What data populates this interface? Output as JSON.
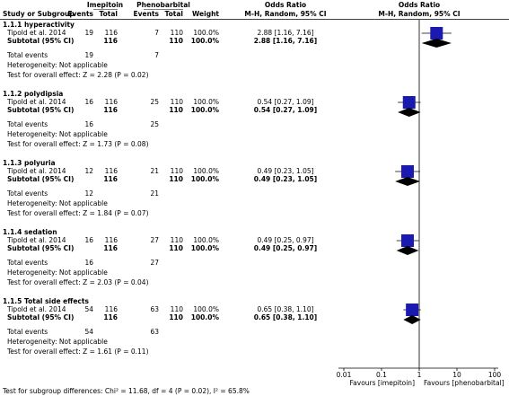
{
  "chart_data": {
    "type": "forest",
    "headers": {
      "study": "Study or Subgroup",
      "group1": "Imepitoin",
      "group2": "Phenobarbital",
      "events": "Events",
      "total": "Total",
      "weight": "Weight",
      "effect": "Odds Ratio",
      "method": "M-H, Random, 95% CI"
    },
    "total_events_label": "Total events",
    "groups": [
      {
        "title": "1.1.1 hyperactivity",
        "study": {
          "name": "Tipold et al. 2014",
          "events1": 19,
          "total1": 116,
          "events2": 7,
          "total2": 110,
          "weight": "100.0%",
          "or": 2.88,
          "ci": [
            1.16,
            7.16
          ],
          "label": "2.88 [1.16, 7.16]"
        },
        "subtotal": {
          "name": "Subtotal (95% CI)",
          "total1": 116,
          "total2": 110,
          "weight": "100.0%",
          "or": 2.88,
          "ci": [
            1.16,
            7.16
          ],
          "label": "2.88 [1.16, 7.16]"
        },
        "total_events": [
          19,
          7
        ],
        "heterogeneity": "Heterogeneity: Not applicable",
        "overall": "Test for overall effect: Z = 2.28 (P = 0.02)"
      },
      {
        "title": "1.1.2 polydipsia",
        "study": {
          "name": "Tipold et al. 2014",
          "events1": 16,
          "total1": 116,
          "events2": 25,
          "total2": 110,
          "weight": "100.0%",
          "or": 0.54,
          "ci": [
            0.27,
            1.09
          ],
          "label": "0.54 [0.27, 1.09]"
        },
        "subtotal": {
          "name": "Subtotal (95% CI)",
          "total1": 116,
          "total2": 110,
          "weight": "100.0%",
          "or": 0.54,
          "ci": [
            0.27,
            1.09
          ],
          "label": "0.54 [0.27, 1.09]"
        },
        "total_events": [
          16,
          25
        ],
        "heterogeneity": "Heterogeneity: Not applicable",
        "overall": "Test for overall effect: Z = 1.73 (P = 0.08)"
      },
      {
        "title": "1.1.3 polyuria",
        "study": {
          "name": "Tipold et al. 2014",
          "events1": 12,
          "total1": 116,
          "events2": 21,
          "total2": 110,
          "weight": "100.0%",
          "or": 0.49,
          "ci": [
            0.23,
            1.05
          ],
          "label": "0.49 [0.23, 1.05]"
        },
        "subtotal": {
          "name": "Subtotal (95% CI)",
          "total1": 116,
          "total2": 110,
          "weight": "100.0%",
          "or": 0.49,
          "ci": [
            0.23,
            1.05
          ],
          "label": "0.49 [0.23, 1.05]"
        },
        "total_events": [
          12,
          21
        ],
        "heterogeneity": "Heterogeneity: Not applicable",
        "overall": "Test for overall effect: Z = 1.84 (P = 0.07)"
      },
      {
        "title": "1.1.4 sedation",
        "study": {
          "name": "Tipold et al. 2014",
          "events1": 16,
          "total1": 116,
          "events2": 27,
          "total2": 110,
          "weight": "100.0%",
          "or": 0.49,
          "ci": [
            0.25,
            0.97
          ],
          "label": "0.49 [0.25, 0.97]"
        },
        "subtotal": {
          "name": "Subtotal (95% CI)",
          "total1": 116,
          "total2": 110,
          "weight": "100.0%",
          "or": 0.49,
          "ci": [
            0.25,
            0.97
          ],
          "label": "0.49 [0.25, 0.97]"
        },
        "total_events": [
          16,
          27
        ],
        "heterogeneity": "Heterogeneity: Not applicable",
        "overall": "Test for overall effect: Z = 2.03 (P = 0.04)"
      },
      {
        "title": "1.1.5 Total side effects",
        "study": {
          "name": "Tipold et al. 2014",
          "events1": 54,
          "total1": 116,
          "events2": 63,
          "total2": 110,
          "weight": "100.0%",
          "or": 0.65,
          "ci": [
            0.38,
            1.1
          ],
          "label": "0.65 [0.38, 1.10]"
        },
        "subtotal": {
          "name": "Subtotal (95% CI)",
          "total1": 116,
          "total2": 110,
          "weight": "100.0%",
          "or": 0.65,
          "ci": [
            0.38,
            1.1
          ],
          "label": "0.65 [0.38, 1.10]"
        },
        "total_events": [
          54,
          63
        ],
        "heterogeneity": "Heterogeneity: Not applicable",
        "overall": "Test for overall effect: Z = 1.61 (P = 0.11)"
      }
    ],
    "xlim": [
      0.01,
      100
    ],
    "xticks": [
      0.01,
      0.1,
      1,
      10,
      100
    ],
    "log_scale": true,
    "reference_line": 1,
    "favours_left": "Favours [imepitoin]",
    "favours_right": "Favours [phenobarbital]",
    "marker_color": "#1a1ab0",
    "subgroup_test": "Test for subgroup differences: Chi² = 11.68, df = 4 (P = 0.02), I² = 65.8%"
  }
}
